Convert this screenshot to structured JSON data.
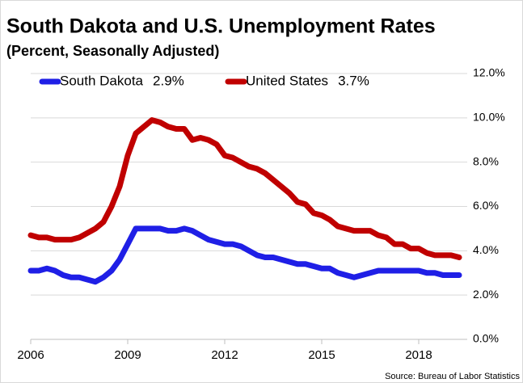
{
  "chart_data": {
    "type": "line",
    "title": "South Dakota and U.S. Unemployment Rates",
    "subtitle": "(Percent, Seasonally Adjusted)",
    "source": "Source: Bureau of Labor Statistics",
    "x": [
      2006,
      2006.25,
      2006.5,
      2006.75,
      2007,
      2007.25,
      2007.5,
      2007.75,
      2008,
      2008.25,
      2008.5,
      2008.75,
      2009,
      2009.25,
      2009.5,
      2009.75,
      2010,
      2010.25,
      2010.5,
      2010.75,
      2011,
      2011.25,
      2011.5,
      2011.75,
      2012,
      2012.25,
      2012.5,
      2012.75,
      2013,
      2013.25,
      2013.5,
      2013.75,
      2014,
      2014.25,
      2014.5,
      2014.75,
      2015,
      2015.25,
      2015.5,
      2015.75,
      2016,
      2016.25,
      2016.5,
      2016.75,
      2017,
      2017.25,
      2017.5,
      2017.75,
      2018,
      2018.25,
      2018.5,
      2018.75,
      2019,
      2019.25
    ],
    "series": [
      {
        "name": "South Dakota",
        "latest_label": "2.9%",
        "color": "#1f1fe6",
        "values": [
          3.1,
          3.1,
          3.2,
          3.1,
          2.9,
          2.8,
          2.8,
          2.7,
          2.6,
          2.8,
          3.1,
          3.6,
          4.3,
          5.0,
          5.0,
          5.0,
          5.0,
          4.9,
          4.9,
          5.0,
          4.9,
          4.7,
          4.5,
          4.4,
          4.3,
          4.3,
          4.2,
          4.0,
          3.8,
          3.7,
          3.7,
          3.6,
          3.5,
          3.4,
          3.4,
          3.3,
          3.2,
          3.2,
          3.0,
          2.9,
          2.8,
          2.9,
          3.0,
          3.1,
          3.1,
          3.1,
          3.1,
          3.1,
          3.1,
          3.0,
          3.0,
          2.9,
          2.9,
          2.9
        ]
      },
      {
        "name": "United States",
        "latest_label": "3.7%",
        "color": "#c00000",
        "values": [
          4.7,
          4.6,
          4.6,
          4.5,
          4.5,
          4.5,
          4.6,
          4.8,
          5.0,
          5.3,
          6.0,
          6.9,
          8.3,
          9.3,
          9.6,
          9.9,
          9.8,
          9.6,
          9.5,
          9.5,
          9.0,
          9.1,
          9.0,
          8.8,
          8.3,
          8.2,
          8.0,
          7.8,
          7.7,
          7.5,
          7.2,
          6.9,
          6.6,
          6.2,
          6.1,
          5.7,
          5.6,
          5.4,
          5.1,
          5.0,
          4.9,
          4.9,
          4.9,
          4.7,
          4.6,
          4.3,
          4.3,
          4.1,
          4.1,
          3.9,
          3.8,
          3.8,
          3.8,
          3.7
        ]
      }
    ],
    "xlim": [
      2006,
      2019.5
    ],
    "xticks": [
      2006,
      2009,
      2012,
      2015,
      2018
    ],
    "ylim": [
      0,
      12
    ],
    "yticks": [
      {
        "value": 0,
        "label": "0.0%"
      },
      {
        "value": 2,
        "label": "2.0%"
      },
      {
        "value": 4,
        "label": "4.0%"
      },
      {
        "value": 6,
        "label": "6.0%"
      },
      {
        "value": 8,
        "label": "8.0%"
      },
      {
        "value": 10,
        "label": "10.0%"
      },
      {
        "value": 12,
        "label": "12.0%"
      }
    ],
    "grid": true,
    "legend": "top"
  }
}
